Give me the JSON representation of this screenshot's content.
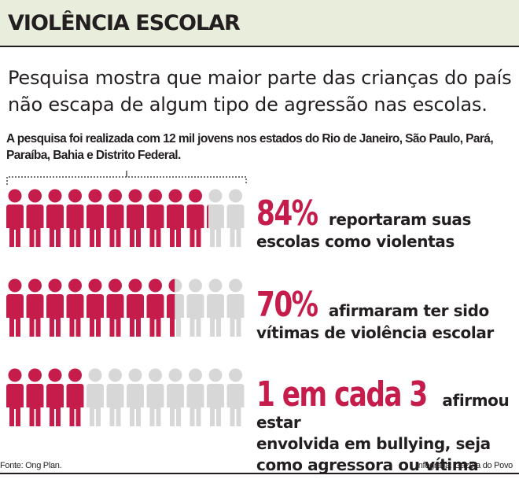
{
  "title": "VIOLÊNCIA ESCOLAR",
  "subtitle": "Pesquisa mostra que maior parte das crianças do país não escapa de algum tipo de agressão nas escolas.",
  "note": "A pesquisa foi realizada com 12 mil jovens nos estados do Rio de Janeiro, São Paulo, Pará, Paraíba, Bahia e Distrito Federal.",
  "colors": {
    "accent": "#c51c4b",
    "inactive": "#d7d7d7",
    "header_bg": "#e9eedc",
    "text": "#231f20"
  },
  "stats": [
    {
      "highlight": "84%",
      "text": "reportaram suas escolas como violentas",
      "line1": "reportaram suas",
      "line2": "escolas como violentas",
      "line3": "",
      "fraction": 0.84
    },
    {
      "highlight": "70%",
      "text": "afirmaram ter sido vítimas de violência escolar",
      "line1": "afirmaram ter sido",
      "line2": "vítimas de violência escolar",
      "line3": "",
      "fraction": 0.7
    },
    {
      "highlight": "1 em cada 3",
      "text": "afirmou estar envolvida em bullying, seja como agressora ou vítima",
      "line1": "afirmou estar",
      "line2": "envolvida em bullying, seja",
      "line3": "como agressora ou vítima",
      "fraction": 0.3333
    }
  ],
  "figure_icon": "person-icon",
  "icons_per_row": 12,
  "source": "Fonte: Ong Plan.",
  "credit": "Infografia: Gazeta do Povo"
}
